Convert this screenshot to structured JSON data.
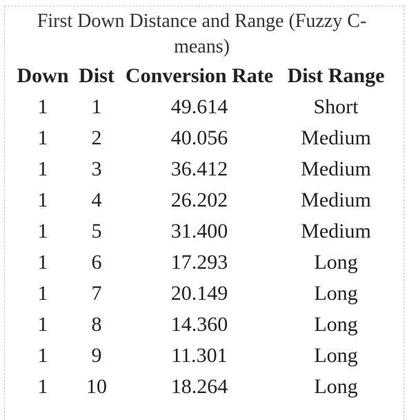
{
  "table": {
    "caption": "First Down Distance and Range (Fuzzy C-means)",
    "headers": [
      "Down",
      "Dist",
      "Conversion Rate",
      "Dist Range"
    ],
    "rows": [
      [
        "1",
        "1",
        "49.614",
        "Short"
      ],
      [
        "1",
        "2",
        "40.056",
        "Medium"
      ],
      [
        "1",
        "3",
        "36.412",
        "Medium"
      ],
      [
        "1",
        "4",
        "26.202",
        "Medium"
      ],
      [
        "1",
        "5",
        "31.400",
        "Medium"
      ],
      [
        "1",
        "6",
        "17.293",
        "Long"
      ],
      [
        "1",
        "7",
        "20.149",
        "Long"
      ],
      [
        "1",
        "8",
        "14.360",
        "Long"
      ],
      [
        "1",
        "9",
        "11.301",
        "Long"
      ],
      [
        "1",
        "10",
        "18.264",
        "Long"
      ]
    ]
  }
}
